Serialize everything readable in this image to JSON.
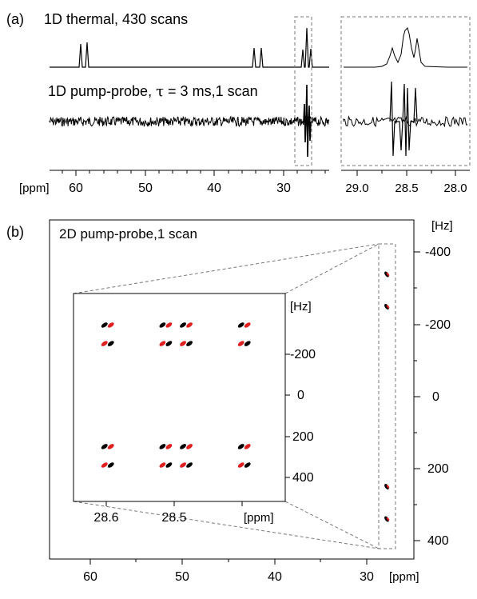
{
  "panel_a": {
    "label": "(a)",
    "thermal_label": "1D thermal, 430 scans",
    "pp_label_pre": "1D pump-probe, ",
    "pp_label_tau": "τ",
    "pp_label_post": " = 3 ms,1 scan",
    "main_axis_unit": "[ppm]",
    "main_axis_ticks": [
      "60",
      "50",
      "40",
      "30"
    ],
    "inset_axis_ticks": [
      "29.0",
      "28.5",
      "28.0"
    ]
  },
  "panel_b": {
    "label": "(b)",
    "title": "2D pump-probe,1 scan",
    "y_unit": "[Hz]",
    "y_ticks": [
      "-400",
      "-200",
      "0",
      "200",
      "400"
    ],
    "x_unit": "[ppm]",
    "x_ticks": [
      "60",
      "50",
      "40",
      "30"
    ],
    "inset": {
      "y_unit": "[Hz]",
      "y_ticks": [
        "-200",
        "0",
        "200",
        "400"
      ],
      "x_unit": "[ppm]",
      "x_ticks": [
        "28.6",
        "28.5"
      ]
    }
  },
  "colors": {
    "ink": "#000000",
    "red": "#e02020",
    "dashed": "#777777"
  },
  "chart_data": [
    {
      "type": "line",
      "panel": "a-main-thermal",
      "series": [
        {
          "x": [
            59.2,
            58.5,
            38.2,
            37.6,
            28.6,
            28.5,
            28.4
          ],
          "values": [
            0.95,
            0.95,
            0.8,
            0.8,
            0.8,
            1.0,
            0.8
          ]
        }
      ],
      "xlim": [
        64,
        23
      ]
    },
    {
      "type": "line",
      "panel": "a-main-pump-probe",
      "series": [
        {
          "x": [
            28.6,
            28.5,
            28.45,
            28.4
          ],
          "values": [
            1.0,
            -1.0,
            1.0,
            -1.0
          ]
        }
      ],
      "xlim": [
        64,
        23
      ]
    },
    {
      "type": "line",
      "panel": "a-inset-thermal",
      "series": [
        {
          "x": [
            28.6,
            28.5,
            28.4
          ],
          "values": [
            0.75,
            1.0,
            0.72
          ]
        }
      ],
      "xlim": [
        29.1,
        27.9
      ]
    },
    {
      "type": "line",
      "panel": "a-inset-pump-probe",
      "series": [
        {
          "x": [
            28.6,
            28.53,
            28.5,
            28.46,
            28.4
          ],
          "values": [
            1.0,
            -1.0,
            1.0,
            -1.0,
            0.8
          ]
        }
      ],
      "xlim": [
        29.1,
        27.9
      ]
    },
    {
      "type": "scatter",
      "panel": "b-main",
      "series": [
        {
          "x": [
            28.5,
            28.5,
            28.5,
            28.5
          ],
          "values": [
            -340,
            -250,
            250,
            340
          ]
        }
      ],
      "xlim": [
        65,
        25
      ],
      "ylim": [
        -480,
        470
      ]
    },
    {
      "type": "scatter",
      "panel": "b-inset",
      "series": [
        {
          "x": [
            28.6,
            28.515,
            28.485,
            28.4,
            28.6,
            28.515,
            28.485,
            28.4,
            28.6,
            28.515,
            28.485,
            28.4,
            28.6,
            28.515,
            28.485,
            28.4
          ],
          "values": [
            -340,
            -340,
            -340,
            -340,
            -250,
            -250,
            -250,
            -250,
            250,
            250,
            250,
            250,
            340,
            340,
            340,
            340
          ]
        }
      ],
      "xlim": [
        28.65,
        28.34
      ],
      "ylim": [
        -470,
        470
      ]
    }
  ]
}
